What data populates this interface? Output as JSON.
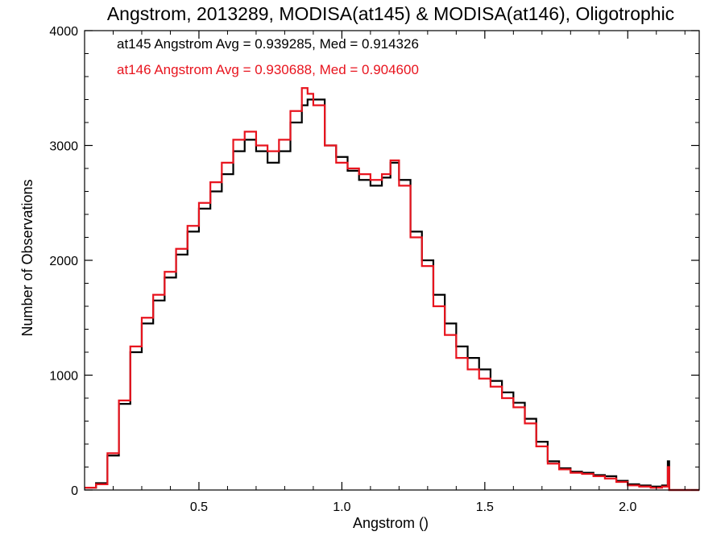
{
  "chart_data": {
    "type": "line",
    "style": "step",
    "title": "Angstrom, 2013289, MODISA(at145) & MODISA(at146), Oligotrophic",
    "xlabel": "Angstrom ()",
    "ylabel": "Number of Observations",
    "xlim": [
      0.1,
      2.25
    ],
    "ylim": [
      0,
      4000
    ],
    "xticks": [
      0.5,
      1.0,
      1.5,
      2.0
    ],
    "xtick_labels": [
      "0.5",
      "1.0",
      "1.5",
      "2.0"
    ],
    "yticks": [
      0,
      1000,
      2000,
      3000,
      4000
    ],
    "ytick_labels": [
      "0",
      "1000",
      "2000",
      "3000",
      "4000"
    ],
    "grid": false,
    "annotations": [
      {
        "text": "at145 Angstrom Avg = 0.939285, Med = 0.914326",
        "color": "#000000"
      },
      {
        "text": "at146 Angstrom Avg = 0.930688, Med = 0.904600",
        "color": "#e8141e"
      }
    ],
    "series": [
      {
        "color": "#000000",
        "x": [
          0.1,
          0.14,
          0.18,
          0.22,
          0.26,
          0.3,
          0.34,
          0.38,
          0.42,
          0.46,
          0.5,
          0.54,
          0.58,
          0.62,
          0.66,
          0.7,
          0.74,
          0.78,
          0.82,
          0.86,
          0.88,
          0.9,
          0.94,
          0.98,
          1.02,
          1.06,
          1.1,
          1.14,
          1.17,
          1.2,
          1.24,
          1.28,
          1.32,
          1.36,
          1.4,
          1.44,
          1.48,
          1.52,
          1.56,
          1.6,
          1.64,
          1.68,
          1.72,
          1.76,
          1.8,
          1.84,
          1.88,
          1.92,
          1.96,
          2.0,
          2.04,
          2.08,
          2.12,
          2.14,
          2.145,
          2.25
        ],
        "y": [
          20,
          60,
          300,
          750,
          1200,
          1450,
          1650,
          1850,
          2050,
          2250,
          2450,
          2600,
          2750,
          2950,
          3050,
          2950,
          2850,
          2950,
          3200,
          3350,
          3400,
          3400,
          3000,
          2900,
          2780,
          2700,
          2650,
          2720,
          2850,
          2700,
          2250,
          2000,
          1700,
          1450,
          1250,
          1150,
          1050,
          950,
          850,
          760,
          620,
          420,
          250,
          190,
          160,
          150,
          130,
          120,
          80,
          50,
          40,
          30,
          40,
          250,
          0,
          0
        ]
      },
      {
        "color": "#e8141e",
        "x": [
          0.1,
          0.14,
          0.18,
          0.22,
          0.26,
          0.3,
          0.34,
          0.38,
          0.42,
          0.46,
          0.5,
          0.54,
          0.58,
          0.62,
          0.66,
          0.7,
          0.74,
          0.78,
          0.82,
          0.86,
          0.88,
          0.9,
          0.94,
          0.98,
          1.02,
          1.06,
          1.1,
          1.14,
          1.17,
          1.2,
          1.24,
          1.28,
          1.32,
          1.36,
          1.4,
          1.44,
          1.48,
          1.52,
          1.56,
          1.6,
          1.64,
          1.68,
          1.72,
          1.76,
          1.8,
          1.84,
          1.88,
          1.92,
          1.96,
          2.0,
          2.04,
          2.08,
          2.12,
          2.14,
          2.145,
          2.25
        ],
        "y": [
          20,
          50,
          320,
          780,
          1250,
          1500,
          1700,
          1900,
          2100,
          2300,
          2500,
          2680,
          2850,
          3050,
          3120,
          3000,
          2950,
          3050,
          3300,
          3500,
          3450,
          3350,
          3000,
          2850,
          2800,
          2750,
          2700,
          2750,
          2870,
          2650,
          2200,
          1950,
          1600,
          1350,
          1150,
          1050,
          970,
          900,
          800,
          720,
          580,
          380,
          230,
          180,
          150,
          140,
          120,
          100,
          70,
          40,
          30,
          20,
          30,
          200,
          0,
          0
        ]
      }
    ]
  }
}
